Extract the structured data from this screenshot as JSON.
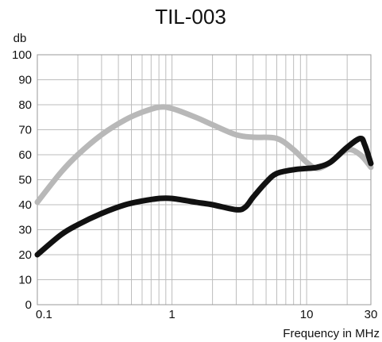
{
  "chart_data": {
    "type": "line",
    "title": "TIL-003",
    "ylabel": "db",
    "xlabel": "Frequency in MHz",
    "xscale": "log",
    "xlim": [
      0.1,
      30
    ],
    "ylim": [
      0,
      100
    ],
    "grid": true,
    "x_ticks": [
      {
        "value": 0.1,
        "label": "0.1"
      },
      {
        "value": 1,
        "label": "1"
      },
      {
        "value": 10,
        "label": "10"
      },
      {
        "value": 30,
        "label": "30"
      }
    ],
    "y_ticks": [
      0,
      10,
      20,
      30,
      40,
      50,
      60,
      70,
      80,
      90,
      100
    ],
    "series": [
      {
        "color": "#b8b8b8",
        "points": [
          [
            0.1,
            41
          ],
          [
            0.15,
            53
          ],
          [
            0.2,
            60
          ],
          [
            0.3,
            68
          ],
          [
            0.45,
            74
          ],
          [
            0.6,
            77
          ],
          [
            0.8,
            79
          ],
          [
            1.0,
            78.5
          ],
          [
            1.5,
            75
          ],
          [
            2.0,
            72
          ],
          [
            3.0,
            68
          ],
          [
            4.0,
            67
          ],
          [
            6.0,
            66.5
          ],
          [
            8.0,
            62
          ],
          [
            10,
            57
          ],
          [
            12,
            54.5
          ],
          [
            15,
            57
          ],
          [
            20,
            62
          ],
          [
            25,
            60
          ],
          [
            30,
            55
          ]
        ]
      },
      {
        "color": "#111111",
        "points": [
          [
            0.1,
            20
          ],
          [
            0.15,
            28
          ],
          [
            0.2,
            32
          ],
          [
            0.3,
            36.5
          ],
          [
            0.45,
            40
          ],
          [
            0.6,
            41.5
          ],
          [
            0.8,
            42.5
          ],
          [
            1.0,
            42.5
          ],
          [
            1.5,
            41
          ],
          [
            2.0,
            40
          ],
          [
            3.0,
            38
          ],
          [
            3.5,
            39
          ],
          [
            4.0,
            43
          ],
          [
            5.0,
            49
          ],
          [
            6.0,
            52.5
          ],
          [
            8.0,
            54
          ],
          [
            10,
            54.5
          ],
          [
            12,
            55
          ],
          [
            15,
            57
          ],
          [
            20,
            63
          ],
          [
            25,
            66.5
          ],
          [
            27,
            64
          ],
          [
            30,
            56.5
          ]
        ]
      }
    ]
  }
}
